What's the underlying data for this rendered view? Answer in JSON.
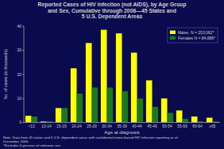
{
  "chart_data": {
    "type": "bar",
    "title": "Reported Cases of HIV Infection (not AIDS), by Age Group\nand Sex, Cumulative through 2006—45 States and\n5 U.S. Dependent Areas",
    "x_label": "Age at diagnosis",
    "y_label": "No. of cases (in thousands)",
    "categories": [
      "<13",
      "13-14",
      "15-19",
      "20-24",
      "25-29",
      "30-34",
      "35-39",
      "40-44",
      "45-49",
      "50-54",
      "55-59",
      "60-64",
      "≥65"
    ],
    "series": [
      {
        "name": "Males  N = 203,062*",
        "color": "#FFFF00",
        "values": [
          2.8,
          0.4,
          6.0,
          22.5,
          33.0,
          38.5,
          37.0,
          29.0,
          17.5,
          10.0,
          5.0,
          2.5,
          2.0
        ]
      },
      {
        "name": "Females N = 84,886*",
        "color": "#1A7A1A",
        "values": [
          2.5,
          0.5,
          6.0,
          12.0,
          14.5,
          14.5,
          13.0,
          10.0,
          6.5,
          4.0,
          1.5,
          0.5,
          0.5
        ]
      }
    ],
    "ylim": [
      0,
      40
    ],
    "yticks": [
      0,
      10,
      20,
      30,
      40
    ],
    "grid": false,
    "legend": "upper right",
    "annotations": [
      "Note. Data from 45 states and 5 U.S. dependent areas with confidential name-based HIV infection reporting as of\nDecember 2006.\n*Excludes 6 persons of unknown sex."
    ]
  }
}
